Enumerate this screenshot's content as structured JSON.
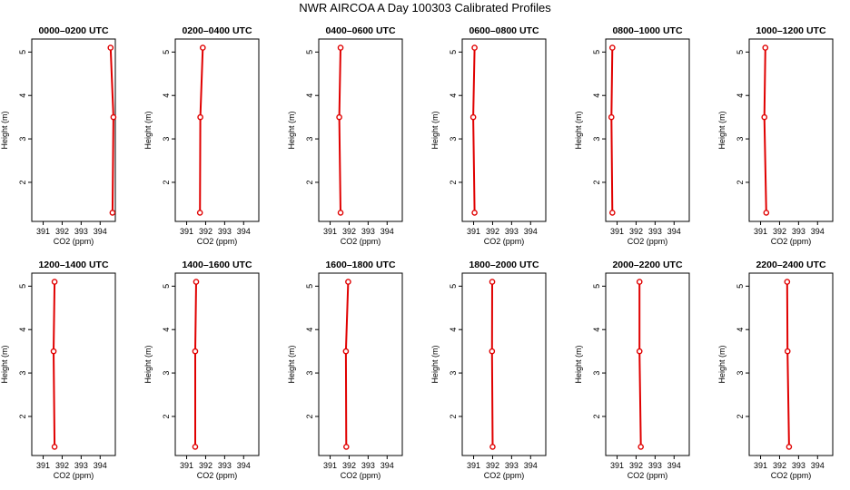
{
  "title": "NWR AIRCOA A  Day 100303  Calibrated Profiles",
  "colors": {
    "line": "#e00000",
    "marker": "#e00000",
    "axes": "#000000"
  },
  "chart_data": [
    {
      "type": "line",
      "title": "0000–0200 UTC",
      "xlabel": "CO2 (ppm)",
      "ylabel": "Height (m)",
      "xlim": [
        390.4,
        394.8
      ],
      "ylim": [
        1.1,
        5.3
      ],
      "xticks": [
        391,
        392,
        393,
        394
      ],
      "yticks": [
        2,
        3,
        4,
        5
      ],
      "series": [
        {
          "name": "",
          "x": [
            394.65,
            394.7,
            394.55
          ],
          "y": [
            1.3,
            3.5,
            5.1
          ]
        }
      ]
    },
    {
      "type": "line",
      "title": "0200–0400 UTC",
      "xlabel": "CO2 (ppm)",
      "ylabel": "Height (m)",
      "xlim": [
        390.4,
        394.8
      ],
      "ylim": [
        1.1,
        5.3
      ],
      "xticks": [
        391,
        392,
        393,
        394
      ],
      "yticks": [
        2,
        3,
        4,
        5
      ],
      "series": [
        {
          "name": "",
          "x": [
            391.7,
            391.72,
            391.85
          ],
          "y": [
            1.3,
            3.5,
            5.1
          ]
        }
      ]
    },
    {
      "type": "line",
      "title": "0400–0600 UTC",
      "xlabel": "CO2 (ppm)",
      "ylabel": "Height (m)",
      "xlim": [
        390.4,
        394.8
      ],
      "ylim": [
        1.1,
        5.3
      ],
      "xticks": [
        391,
        392,
        393,
        394
      ],
      "yticks": [
        2,
        3,
        4,
        5
      ],
      "series": [
        {
          "name": "",
          "x": [
            391.55,
            391.48,
            391.55
          ],
          "y": [
            1.3,
            3.5,
            5.1
          ]
        }
      ]
    },
    {
      "type": "line",
      "title": "0600–0800 UTC",
      "xlabel": "CO2 (ppm)",
      "ylabel": "Height (m)",
      "xlim": [
        390.4,
        394.8
      ],
      "ylim": [
        1.1,
        5.3
      ],
      "xticks": [
        391,
        392,
        393,
        394
      ],
      "yticks": [
        2,
        3,
        4,
        5
      ],
      "series": [
        {
          "name": "",
          "x": [
            391.05,
            390.98,
            391.05
          ],
          "y": [
            1.3,
            3.5,
            5.1
          ]
        }
      ]
    },
    {
      "type": "line",
      "title": "0800–1000 UTC",
      "xlabel": "CO2 (ppm)",
      "ylabel": "Height (m)",
      "xlim": [
        390.4,
        394.8
      ],
      "ylim": [
        1.1,
        5.3
      ],
      "xticks": [
        391,
        392,
        393,
        394
      ],
      "yticks": [
        2,
        3,
        4,
        5
      ],
      "series": [
        {
          "name": "",
          "x": [
            390.75,
            390.7,
            390.75
          ],
          "y": [
            1.3,
            3.5,
            5.1
          ]
        }
      ]
    },
    {
      "type": "line",
      "title": "1000–1200 UTC",
      "xlabel": "CO2 (ppm)",
      "ylabel": "Height (m)",
      "xlim": [
        390.4,
        394.8
      ],
      "ylim": [
        1.1,
        5.3
      ],
      "xticks": [
        391,
        392,
        393,
        394
      ],
      "yticks": [
        2,
        3,
        4,
        5
      ],
      "series": [
        {
          "name": "",
          "x": [
            391.3,
            391.2,
            391.25
          ],
          "y": [
            1.3,
            3.5,
            5.1
          ]
        }
      ]
    },
    {
      "type": "line",
      "title": "1200–1400 UTC",
      "xlabel": "CO2 (ppm)",
      "ylabel": "Height (m)",
      "xlim": [
        390.4,
        394.8
      ],
      "ylim": [
        1.1,
        5.3
      ],
      "xticks": [
        391,
        392,
        393,
        394
      ],
      "yticks": [
        2,
        3,
        4,
        5
      ],
      "series": [
        {
          "name": "",
          "x": [
            391.6,
            391.55,
            391.6
          ],
          "y": [
            1.3,
            3.5,
            5.1
          ]
        }
      ]
    },
    {
      "type": "line",
      "title": "1400–1600 UTC",
      "xlabel": "CO2 (ppm)",
      "ylabel": "Height (m)",
      "xlim": [
        390.4,
        394.8
      ],
      "ylim": [
        1.1,
        5.3
      ],
      "xticks": [
        391,
        392,
        393,
        394
      ],
      "yticks": [
        2,
        3,
        4,
        5
      ],
      "series": [
        {
          "name": "",
          "x": [
            391.45,
            391.45,
            391.5
          ],
          "y": [
            1.3,
            3.5,
            5.1
          ]
        }
      ]
    },
    {
      "type": "line",
      "title": "1600–1800 UTC",
      "xlabel": "CO2 (ppm)",
      "ylabel": "Height (m)",
      "xlim": [
        390.4,
        394.8
      ],
      "ylim": [
        1.1,
        5.3
      ],
      "xticks": [
        391,
        392,
        393,
        394
      ],
      "yticks": [
        2,
        3,
        4,
        5
      ],
      "series": [
        {
          "name": "",
          "x": [
            391.85,
            391.83,
            391.95
          ],
          "y": [
            1.3,
            3.5,
            5.1
          ]
        }
      ]
    },
    {
      "type": "line",
      "title": "1800–2000 UTC",
      "xlabel": "CO2 (ppm)",
      "ylabel": "Height (m)",
      "xlim": [
        390.4,
        394.8
      ],
      "ylim": [
        1.1,
        5.3
      ],
      "xticks": [
        391,
        392,
        393,
        394
      ],
      "yticks": [
        2,
        3,
        4,
        5
      ],
      "series": [
        {
          "name": "",
          "x": [
            392.0,
            391.97,
            391.98
          ],
          "y": [
            1.3,
            3.5,
            5.1
          ]
        }
      ]
    },
    {
      "type": "line",
      "title": "2000–2200 UTC",
      "xlabel": "CO2 (ppm)",
      "ylabel": "Height (m)",
      "xlim": [
        390.4,
        394.8
      ],
      "ylim": [
        1.1,
        5.3
      ],
      "xticks": [
        391,
        392,
        393,
        394
      ],
      "yticks": [
        2,
        3,
        4,
        5
      ],
      "series": [
        {
          "name": "",
          "x": [
            392.25,
            392.18,
            392.18
          ],
          "y": [
            1.3,
            3.5,
            5.1
          ]
        }
      ]
    },
    {
      "type": "line",
      "title": "2200–2400 UTC",
      "xlabel": "CO2 (ppm)",
      "ylabel": "Height (m)",
      "xlim": [
        390.4,
        394.8
      ],
      "ylim": [
        1.1,
        5.3
      ],
      "xticks": [
        391,
        392,
        393,
        394
      ],
      "yticks": [
        2,
        3,
        4,
        5
      ],
      "series": [
        {
          "name": "",
          "x": [
            392.5,
            392.42,
            392.4
          ],
          "y": [
            1.3,
            3.5,
            5.1
          ]
        }
      ]
    }
  ]
}
